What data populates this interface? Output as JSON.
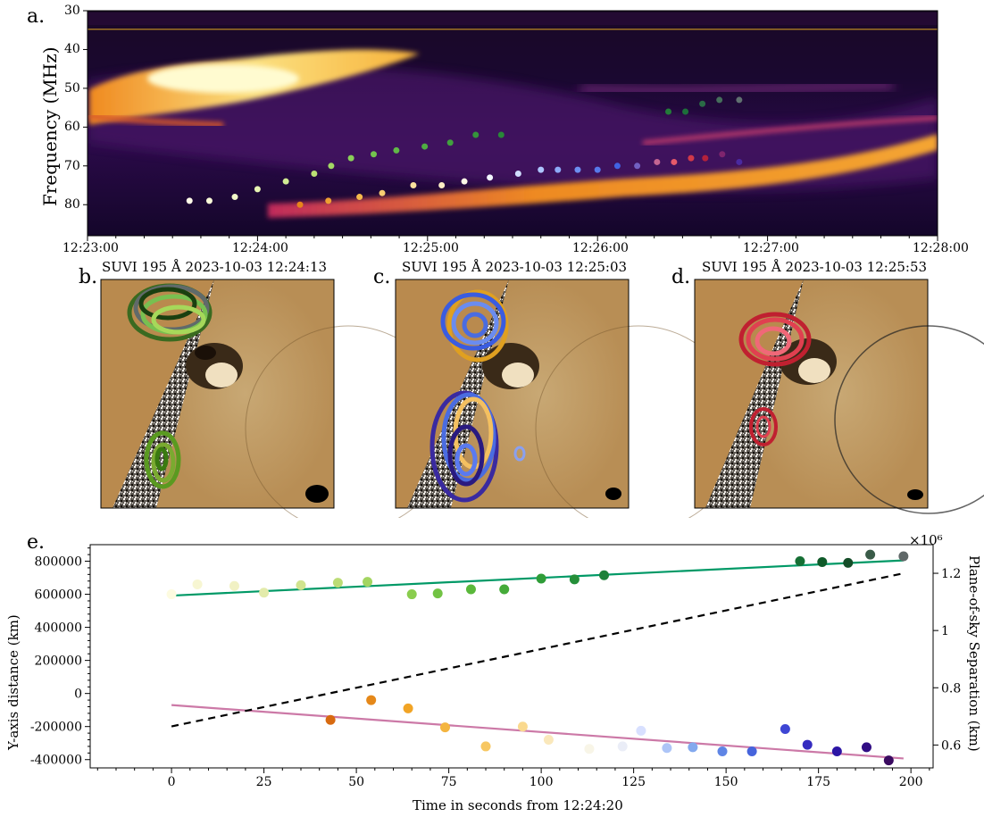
{
  "panel_a": {
    "label": "a.",
    "ylabel": "Frequency (MHz)",
    "yticks": [
      "30",
      "40",
      "50",
      "60",
      "70",
      "80"
    ],
    "xticks": [
      "12:23:00",
      "12:24:00",
      "12:25:00",
      "12:26:00",
      "12:27:00",
      "12:28:00"
    ]
  },
  "panel_b": {
    "label": "b.",
    "title": "SUVI 195 Å 2023-10-03 12:24:13"
  },
  "panel_c": {
    "label": "c.",
    "title": "SUVI 195 Å 2023-10-03 12:25:03"
  },
  "panel_d": {
    "label": "d.",
    "title": "SUVI 195 Å 2023-10-03 12:25:53"
  },
  "panel_e": {
    "label": "e.",
    "xlabel": "Time in seconds from 12:24:20",
    "ylabel_left": "Y-axis distance (km)",
    "ylabel_right": "Plane-of-sky Separation (km)",
    "right_multiplier": "×10⁶"
  },
  "chart_data": [
    {
      "type": "heatmap",
      "xlabel": "",
      "ylabel": "Frequency (MHz)",
      "xlim": [
        "12:23:00",
        "12:28:00"
      ],
      "ylim": [
        88,
        30
      ],
      "xticks": [
        "12:23:00",
        "12:24:00",
        "12:25:00",
        "12:26:00",
        "12:27:00",
        "12:28:00"
      ],
      "yticks": [
        30,
        40,
        50,
        60,
        70,
        80
      ],
      "series": [
        {
          "name": "",
          "points": [
            {
              "t": 36,
              "f": 79
            },
            {
              "t": 43,
              "f": 79
            },
            {
              "t": 52,
              "f": 78
            },
            {
              "t": 60,
              "f": 76
            },
            {
              "t": 70,
              "f": 74
            },
            {
              "t": 80,
              "f": 72
            },
            {
              "t": 86,
              "f": 70
            },
            {
              "t": 93,
              "f": 68
            },
            {
              "t": 101,
              "f": 67
            },
            {
              "t": 109,
              "f": 66
            },
            {
              "t": 119,
              "f": 65
            },
            {
              "t": 128,
              "f": 64
            },
            {
              "t": 137,
              "f": 62
            },
            {
              "t": 146,
              "f": 62
            },
            {
              "t": 205,
              "f": 56
            },
            {
              "t": 211,
              "f": 56
            },
            {
              "t": 217,
              "f": 54
            },
            {
              "t": 223,
              "f": 53
            },
            {
              "t": 230,
              "f": 53
            }
          ]
        },
        {
          "name": "",
          "points": [
            {
              "t": 75,
              "f": 80
            },
            {
              "t": 85,
              "f": 79
            },
            {
              "t": 96,
              "f": 78
            },
            {
              "t": 104,
              "f": 77
            },
            {
              "t": 115,
              "f": 75
            },
            {
              "t": 125,
              "f": 75
            },
            {
              "t": 133,
              "f": 74
            },
            {
              "t": 142,
              "f": 73
            },
            {
              "t": 152,
              "f": 72
            },
            {
              "t": 160,
              "f": 71
            },
            {
              "t": 166,
              "f": 71
            },
            {
              "t": 173,
              "f": 71
            },
            {
              "t": 180,
              "f": 71
            },
            {
              "t": 187,
              "f": 70
            },
            {
              "t": 194,
              "f": 70
            },
            {
              "t": 201,
              "f": 69
            },
            {
              "t": 207,
              "f": 69
            },
            {
              "t": 213,
              "f": 68
            },
            {
              "t": 218,
              "f": 68
            },
            {
              "t": 224,
              "f": 67
            },
            {
              "t": 230,
              "f": 69
            }
          ]
        }
      ]
    },
    {
      "type": "scatter",
      "xlabel": "Time in seconds from 12:24:20",
      "ylabel": "Y-axis distance (km)",
      "ylabel_right": "Plane-of-sky Separation (km)",
      "xlim": [
        -22,
        206
      ],
      "ylim": [
        -450000,
        900000
      ],
      "ylim_right": [
        0.52,
        1.3
      ],
      "right_scale": "×10^6",
      "xticks": [
        0,
        25,
        50,
        75,
        100,
        125,
        150,
        175,
        200
      ],
      "yticks": [
        -400000,
        -200000,
        0,
        200000,
        400000,
        600000,
        800000
      ],
      "yticks_right": [
        0.6,
        0.8,
        1.0,
        1.2
      ],
      "series": [
        {
          "name": "",
          "color": "#6a9a20",
          "points": [
            [
              0,
              600000
            ],
            [
              7,
              660000
            ],
            [
              17,
              650000
            ],
            [
              25,
              610000
            ],
            [
              35,
              655000
            ],
            [
              45,
              670000
            ],
            [
              53,
              675000
            ],
            [
              65,
              600000
            ],
            [
              72,
              605000
            ],
            [
              81,
              630000
            ],
            [
              90,
              630000
            ],
            [
              100,
              695000
            ],
            [
              109,
              690000
            ],
            [
              117,
              715000
            ],
            [
              170,
              800000
            ],
            [
              176,
              795000
            ],
            [
              183,
              790000
            ],
            [
              189,
              840000
            ],
            [
              198,
              830000
            ]
          ]
        },
        {
          "name": "",
          "color": "#3a5ce0",
          "points": [
            [
              43,
              -160000
            ],
            [
              54,
              -40000
            ],
            [
              64,
              -90000
            ],
            [
              74,
              -205000
            ],
            [
              85,
              -320000
            ],
            [
              95,
              -200000
            ],
            [
              102,
              -280000
            ],
            [
              113,
              -335000
            ],
            [
              122,
              -320000
            ],
            [
              127,
              -225000
            ],
            [
              134,
              -330000
            ],
            [
              141,
              -325000
            ],
            [
              149,
              -350000
            ],
            [
              157,
              -350000
            ],
            [
              166,
              -215000
            ],
            [
              172,
              -310000
            ],
            [
              180,
              -350000
            ],
            [
              188,
              -325000
            ],
            [
              194,
              -405000
            ]
          ]
        },
        {
          "name": "",
          "color": "#009966",
          "line": [
            [
              0,
              592000
            ],
            [
              198,
              805000
            ]
          ]
        },
        {
          "name": "",
          "color": "#cc79a7",
          "line": [
            [
              0,
              -70000
            ],
            [
              198,
              -393000
            ]
          ]
        },
        {
          "name": "",
          "color": "#000000",
          "axis": "right",
          "line": [
            [
              0,
              0.665
            ],
            [
              198,
              1.2
            ]
          ]
        }
      ]
    }
  ]
}
